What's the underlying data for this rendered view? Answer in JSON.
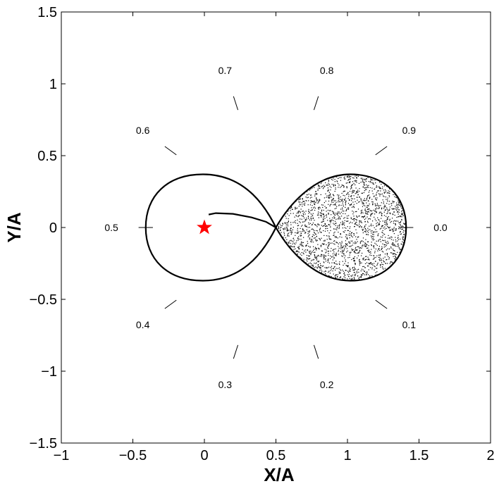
{
  "chart_data": {
    "type": "line",
    "xlabel": "X/A",
    "ylabel": "Y/A",
    "xlim": [
      -1,
      2
    ],
    "ylim": [
      -1.5,
      1.5
    ],
    "grid": false,
    "x_ticks": [
      -1,
      -0.5,
      0,
      0.5,
      1,
      1.5,
      2
    ],
    "x_tick_labels": [
      "−1",
      "−0.5",
      "0",
      "0.5",
      "1",
      "1.5",
      "2"
    ],
    "y_ticks": [
      -1.5,
      -1,
      -0.5,
      0,
      0.5,
      1,
      1.5
    ],
    "y_tick_labels": [
      "−1.5",
      "−1",
      "−0.5",
      "0",
      "0.5",
      "1",
      "1.5"
    ],
    "lobes": [
      {
        "center_x": -0.01,
        "top_x": -0.01,
        "top_y": 0.37,
        "left_x": -0.41,
        "bottom_y": -0.37,
        "neck_x": 0.5,
        "filled": false
      },
      {
        "center_x": 1.02,
        "top_x": 1.02,
        "top_y": 0.37,
        "right_x": 1.41,
        "bottom_y": -0.37,
        "neck_x": 0.5,
        "filled": true
      }
    ],
    "stream": [
      {
        "x": 0.03,
        "y": 0.09
      },
      {
        "x": 0.08,
        "y": 0.1
      },
      {
        "x": 0.2,
        "y": 0.095
      },
      {
        "x": 0.33,
        "y": 0.07
      },
      {
        "x": 0.43,
        "y": 0.04
      },
      {
        "x": 0.5,
        "y": 0.0
      }
    ],
    "star": {
      "x": 0,
      "y": 0,
      "color": "#ff0000"
    },
    "phase_markers": [
      {
        "label": "0.0",
        "angle_deg": 0
      },
      {
        "label": "0.1",
        "angle_deg": -36
      },
      {
        "label": "0.2",
        "angle_deg": -72
      },
      {
        "label": "0.3",
        "angle_deg": -108
      },
      {
        "label": "0.4",
        "angle_deg": -144
      },
      {
        "label": "0.5",
        "angle_deg": 180
      },
      {
        "label": "0.6",
        "angle_deg": 144
      },
      {
        "label": "0.7",
        "angle_deg": 108
      },
      {
        "label": "0.8",
        "angle_deg": 72
      },
      {
        "label": "0.9",
        "angle_deg": 36
      }
    ],
    "phase_center": {
      "x": 0.5,
      "y": 0
    },
    "phase_tick_radius": [
      0.86,
      0.96
    ],
    "phase_label_radius": 1.15
  }
}
